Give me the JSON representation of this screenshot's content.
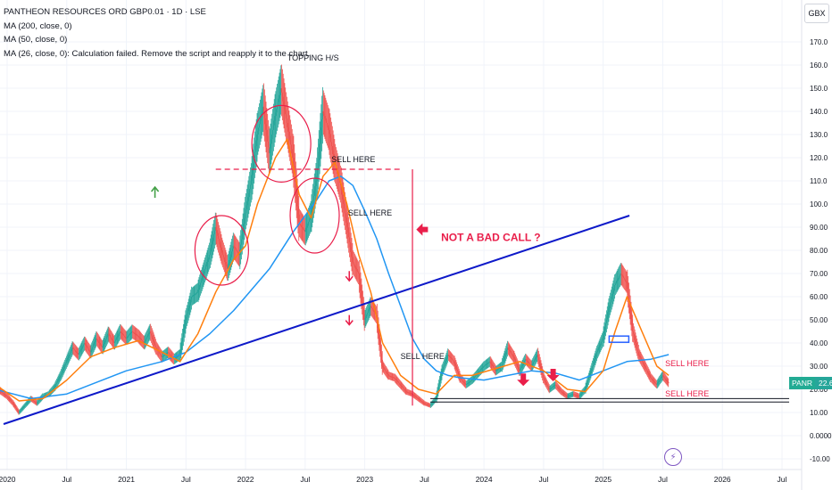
{
  "legend": {
    "symbol": "PANTHEON RESOURCES ORD GBP0.01 · 1D · LSE",
    "ma200": "MA (200, close, 0)",
    "ma50": "MA (50, close, 0)",
    "ma26": "MA (26, close, 0): Calculation failed. Remove the script and reapply it to the chart."
  },
  "currency": "GBX",
  "last_price": {
    "ticker": "PANR",
    "value": "22.65"
  },
  "annotations": {
    "topping": "TOPPING H/S",
    "sell1": "SELL HERE",
    "sell2": "SELL HERE",
    "sell3": "SELL HERE",
    "sell4": "SELL HERE",
    "sell5": "SELL HERE",
    "not_bad": "NOT A BAD CALL ?"
  },
  "colors": {
    "up": "#26a69a",
    "down": "#ef5350",
    "ma200": "#2196f3",
    "ma50": "#ff7f0e",
    "trendline": "#0d19c9",
    "drawing": "#e91e4a",
    "label": "#131722"
  },
  "icons": {
    "alert": "lightning-bolt-icon",
    "arrow_up": "green-up-arrow-icon"
  },
  "chart_data": {
    "type": "line",
    "title": "PANTHEON RESOURCES ORD GBP0.01 · 1D · LSE",
    "y_unit": "GBX",
    "ylim": [
      -10,
      180
    ],
    "y_ticks": [
      "-10.00",
      "0.0000",
      "10.00",
      "20.00",
      "30.00",
      "40.00",
      "50.00",
      "60.00",
      "70.00",
      "80.00",
      "90.00",
      "100.0",
      "110.0",
      "120.0",
      "130.0",
      "140.0",
      "150.0",
      "160.0",
      "170.0"
    ],
    "x_ticks": [
      {
        "label": "2020",
        "x": 2020.0
      },
      {
        "label": "Jul",
        "x": 2020.5
      },
      {
        "label": "2021",
        "x": 2021.0
      },
      {
        "label": "Jul",
        "x": 2021.5
      },
      {
        "label": "2022",
        "x": 2022.0
      },
      {
        "label": "Jul",
        "x": 2022.5
      },
      {
        "label": "2023",
        "x": 2023.0
      },
      {
        "label": "Jul",
        "x": 2023.5
      },
      {
        "label": "2024",
        "x": 2024.0
      },
      {
        "label": "Jul",
        "x": 2024.5
      },
      {
        "label": "2025",
        "x": 2025.0
      },
      {
        "label": "Jul",
        "x": 2025.5
      },
      {
        "label": "2026",
        "x": 2026.0
      },
      {
        "label": "Jul",
        "x": 2026.5
      }
    ],
    "grid": true,
    "series": [
      {
        "name": "PANTHEON RESOURCES ORD GBP0.01",
        "role": "price",
        "points": [
          [
            2019.9,
            22
          ],
          [
            2019.95,
            19
          ],
          [
            2020.0,
            17
          ],
          [
            2020.05,
            14
          ],
          [
            2020.1,
            10
          ],
          [
            2020.15,
            13
          ],
          [
            2020.2,
            16
          ],
          [
            2020.25,
            14
          ],
          [
            2020.3,
            17
          ],
          [
            2020.35,
            18
          ],
          [
            2020.4,
            21
          ],
          [
            2020.45,
            26
          ],
          [
            2020.5,
            32
          ],
          [
            2020.55,
            38
          ],
          [
            2020.6,
            35
          ],
          [
            2020.65,
            40
          ],
          [
            2020.7,
            36
          ],
          [
            2020.75,
            42
          ],
          [
            2020.8,
            38
          ],
          [
            2020.85,
            44
          ],
          [
            2020.9,
            40
          ],
          [
            2020.95,
            45
          ],
          [
            2021.0,
            42
          ],
          [
            2021.05,
            45
          ],
          [
            2021.1,
            43
          ],
          [
            2021.15,
            40
          ],
          [
            2021.2,
            45
          ],
          [
            2021.25,
            38
          ],
          [
            2021.3,
            34
          ],
          [
            2021.35,
            36
          ],
          [
            2021.4,
            33
          ],
          [
            2021.45,
            35
          ],
          [
            2021.5,
            50
          ],
          [
            2021.55,
            60
          ],
          [
            2021.6,
            62
          ],
          [
            2021.65,
            70
          ],
          [
            2021.7,
            78
          ],
          [
            2021.75,
            90
          ],
          [
            2021.8,
            80
          ],
          [
            2021.85,
            72
          ],
          [
            2021.9,
            82
          ],
          [
            2021.95,
            78
          ],
          [
            2022.0,
            96
          ],
          [
            2022.05,
            110
          ],
          [
            2022.1,
            130
          ],
          [
            2022.15,
            142
          ],
          [
            2022.2,
            122
          ],
          [
            2022.25,
            138
          ],
          [
            2022.3,
            150
          ],
          [
            2022.35,
            135
          ],
          [
            2022.4,
            120
          ],
          [
            2022.45,
            92
          ],
          [
            2022.5,
            88
          ],
          [
            2022.55,
            95
          ],
          [
            2022.6,
            112
          ],
          [
            2022.65,
            140
          ],
          [
            2022.7,
            132
          ],
          [
            2022.75,
            118
          ],
          [
            2022.8,
            108
          ],
          [
            2022.85,
            92
          ],
          [
            2022.9,
            75
          ],
          [
            2022.95,
            70
          ],
          [
            2023.0,
            50
          ],
          [
            2023.05,
            56
          ],
          [
            2023.1,
            52
          ],
          [
            2023.15,
            30
          ],
          [
            2023.2,
            26
          ],
          [
            2023.25,
            25
          ],
          [
            2023.3,
            22
          ],
          [
            2023.35,
            19
          ],
          [
            2023.4,
            18
          ],
          [
            2023.45,
            16
          ],
          [
            2023.5,
            14
          ],
          [
            2023.55,
            13
          ],
          [
            2023.6,
            16
          ],
          [
            2023.65,
            28
          ],
          [
            2023.7,
            35
          ],
          [
            2023.75,
            32
          ],
          [
            2023.8,
            25
          ],
          [
            2023.85,
            22
          ],
          [
            2023.9,
            24
          ],
          [
            2023.95,
            27
          ],
          [
            2024.0,
            30
          ],
          [
            2024.05,
            32
          ],
          [
            2024.1,
            28
          ],
          [
            2024.15,
            30
          ],
          [
            2024.2,
            38
          ],
          [
            2024.25,
            34
          ],
          [
            2024.3,
            28
          ],
          [
            2024.35,
            33
          ],
          [
            2024.4,
            30
          ],
          [
            2024.45,
            35
          ],
          [
            2024.5,
            25
          ],
          [
            2024.55,
            20
          ],
          [
            2024.6,
            22
          ],
          [
            2024.65,
            19
          ],
          [
            2024.7,
            17
          ],
          [
            2024.75,
            18
          ],
          [
            2024.8,
            17
          ],
          [
            2024.85,
            20
          ],
          [
            2024.9,
            28
          ],
          [
            2024.95,
            36
          ],
          [
            2025.0,
            42
          ],
          [
            2025.05,
            55
          ],
          [
            2025.1,
            65
          ],
          [
            2025.15,
            70
          ],
          [
            2025.2,
            66
          ],
          [
            2025.25,
            45
          ],
          [
            2025.3,
            35
          ],
          [
            2025.35,
            30
          ],
          [
            2025.4,
            25
          ],
          [
            2025.45,
            22
          ],
          [
            2025.5,
            26
          ],
          [
            2025.55,
            22.65
          ]
        ]
      },
      {
        "name": "MA (200, close, 0)",
        "role": "ma200",
        "points": [
          [
            2019.9,
            20
          ],
          [
            2020.2,
            16
          ],
          [
            2020.5,
            18
          ],
          [
            2020.8,
            24
          ],
          [
            2021.0,
            28
          ],
          [
            2021.3,
            32
          ],
          [
            2021.5,
            36
          ],
          [
            2021.7,
            44
          ],
          [
            2021.9,
            54
          ],
          [
            2022.0,
            60
          ],
          [
            2022.2,
            72
          ],
          [
            2022.4,
            88
          ],
          [
            2022.6,
            102
          ],
          [
            2022.7,
            110
          ],
          [
            2022.8,
            112
          ],
          [
            2022.9,
            108
          ],
          [
            2023.0,
            97
          ],
          [
            2023.1,
            85
          ],
          [
            2023.2,
            70
          ],
          [
            2023.3,
            56
          ],
          [
            2023.4,
            42
          ],
          [
            2023.5,
            33
          ],
          [
            2023.6,
            28
          ],
          [
            2023.7,
            26
          ],
          [
            2023.8,
            25
          ],
          [
            2024.0,
            24
          ],
          [
            2024.2,
            26
          ],
          [
            2024.4,
            28
          ],
          [
            2024.6,
            27
          ],
          [
            2024.8,
            24
          ],
          [
            2025.0,
            28
          ],
          [
            2025.2,
            32
          ],
          [
            2025.4,
            33
          ],
          [
            2025.55,
            35
          ]
        ]
      },
      {
        "name": "MA (50, close, 0)",
        "role": "ma50",
        "points": [
          [
            2019.9,
            22
          ],
          [
            2020.1,
            15
          ],
          [
            2020.3,
            16
          ],
          [
            2020.5,
            24
          ],
          [
            2020.7,
            34
          ],
          [
            2020.9,
            38
          ],
          [
            2021.1,
            41
          ],
          [
            2021.3,
            36
          ],
          [
            2021.45,
            32
          ],
          [
            2021.6,
            44
          ],
          [
            2021.75,
            62
          ],
          [
            2021.9,
            76
          ],
          [
            2022.0,
            82
          ],
          [
            2022.1,
            100
          ],
          [
            2022.25,
            120
          ],
          [
            2022.35,
            128
          ],
          [
            2022.45,
            104
          ],
          [
            2022.55,
            94
          ],
          [
            2022.65,
            112
          ],
          [
            2022.75,
            118
          ],
          [
            2022.85,
            100
          ],
          [
            2022.95,
            78
          ],
          [
            2023.05,
            62
          ],
          [
            2023.15,
            40
          ],
          [
            2023.3,
            26
          ],
          [
            2023.45,
            20
          ],
          [
            2023.6,
            18
          ],
          [
            2023.75,
            26
          ],
          [
            2023.9,
            26
          ],
          [
            2024.1,
            29
          ],
          [
            2024.3,
            32
          ],
          [
            2024.5,
            28
          ],
          [
            2024.7,
            20
          ],
          [
            2024.85,
            19
          ],
          [
            2025.0,
            28
          ],
          [
            2025.1,
            45
          ],
          [
            2025.2,
            60
          ],
          [
            2025.3,
            48
          ],
          [
            2025.45,
            30
          ],
          [
            2025.55,
            26
          ]
        ]
      }
    ]
  }
}
